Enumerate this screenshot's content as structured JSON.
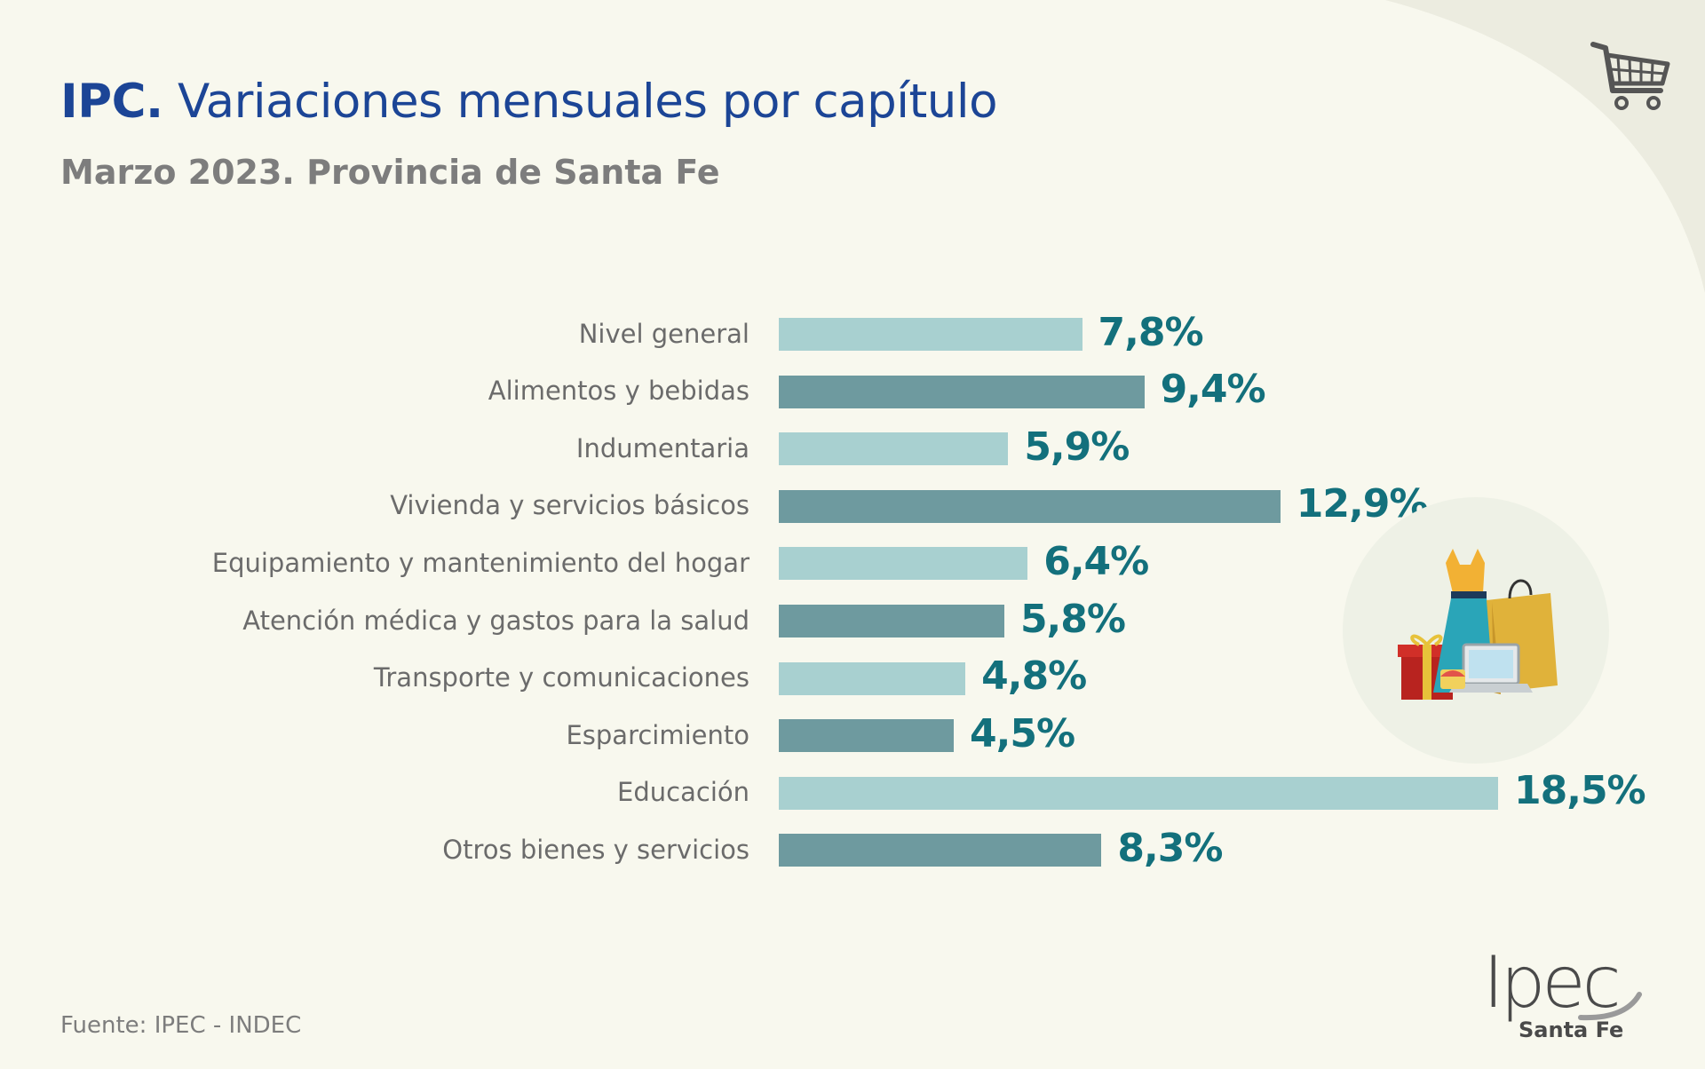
{
  "header": {
    "title_bold": "IPC.",
    "title_rest": "Variaciones mensuales por capítulo",
    "subtitle_bold": "Marzo 2023.",
    "subtitle_rest": "Provincia de Santa Fe"
  },
  "chart_data": {
    "type": "bar",
    "orientation": "horizontal",
    "categories": [
      "Nivel general",
      "Alimentos y bebidas",
      "Indumentaria",
      "Vivienda y servicios básicos",
      "Equipamiento y mantenimiento del hogar",
      "Atención médica y gastos para la salud",
      "Transporte y comunicaciones",
      "Esparcimiento",
      "Educación",
      "Otros bienes y servicios"
    ],
    "values": [
      7.8,
      9.4,
      5.9,
      12.9,
      6.4,
      5.8,
      4.8,
      4.5,
      18.5,
      8.3
    ],
    "value_labels": [
      "7,8%",
      "9,4%",
      "5,9%",
      "12,9%",
      "6,4%",
      "5,8%",
      "4,8%",
      "4,5%",
      "18,5%",
      "8,3%"
    ],
    "xlim": [
      0,
      18.5
    ],
    "grid": false,
    "colors": {
      "light": "#a8d0d0",
      "dark": "#6e9a9f",
      "value_text": "#13707c"
    }
  },
  "footer": {
    "source": "Fuente: IPEC - INDEC",
    "logo_text": "Ipec",
    "logo_sub": "Santa Fe"
  },
  "icons": {
    "cart": "shopping-cart-icon",
    "illustration": "shopping-items-icon"
  }
}
